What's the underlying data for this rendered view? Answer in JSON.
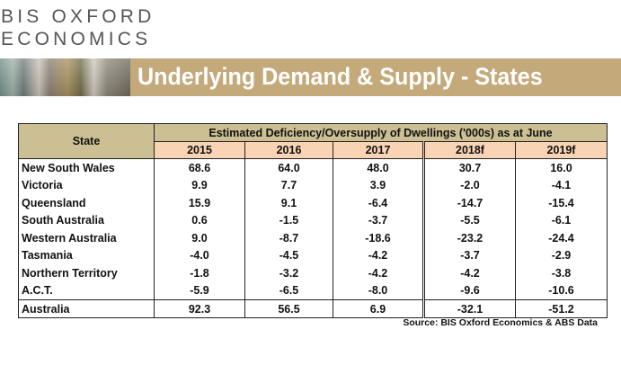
{
  "logo": {
    "line1": "BIS OXFORD",
    "line2": "ECONOMICS"
  },
  "banner": {
    "title": "Underlying Demand & Supply - States"
  },
  "table": {
    "state_header": "State",
    "group_header": "Estimated Deficiency/Oversupply of Dwellings ('000s) as at June",
    "years": [
      "2015",
      "2016",
      "2017",
      "2018f",
      "2019f"
    ],
    "rows": [
      {
        "state": "New South Wales",
        "values": [
          "68.6",
          "64.0",
          "48.0",
          "30.7",
          "16.0"
        ]
      },
      {
        "state": "Victoria",
        "values": [
          "9.9",
          "7.7",
          "3.9",
          "-2.0",
          "-4.1"
        ]
      },
      {
        "state": "Queensland",
        "values": [
          "15.9",
          "9.1",
          "-6.4",
          "-14.7",
          "-15.4"
        ]
      },
      {
        "state": "South Australia",
        "values": [
          "0.6",
          "-1.5",
          "-3.7",
          "-5.5",
          "-6.1"
        ]
      },
      {
        "state": "Western Australia",
        "values": [
          "9.0",
          "-8.7",
          "-18.6",
          "-23.2",
          "-24.4"
        ]
      },
      {
        "state": "Tasmania",
        "values": [
          "-4.0",
          "-4.5",
          "-4.2",
          "-3.7",
          "-2.9"
        ]
      },
      {
        "state": "Northern Territory",
        "values": [
          "-1.8",
          "-3.2",
          "-4.2",
          "-4.2",
          "-3.8"
        ]
      },
      {
        "state": "A.C.T.",
        "values": [
          "-5.9",
          "-6.5",
          "-8.0",
          "-9.6",
          "-10.6"
        ]
      }
    ],
    "total": {
      "state": "Australia",
      "values": [
        "92.3",
        "56.5",
        "6.9",
        "-32.1",
        "-51.2"
      ]
    }
  },
  "source": "Source: BIS Oxford Economics & ABS Data",
  "colors": {
    "banner": "#c4a97a",
    "header_top": "#cbbf93",
    "header_years": "#f9d4b4"
  }
}
